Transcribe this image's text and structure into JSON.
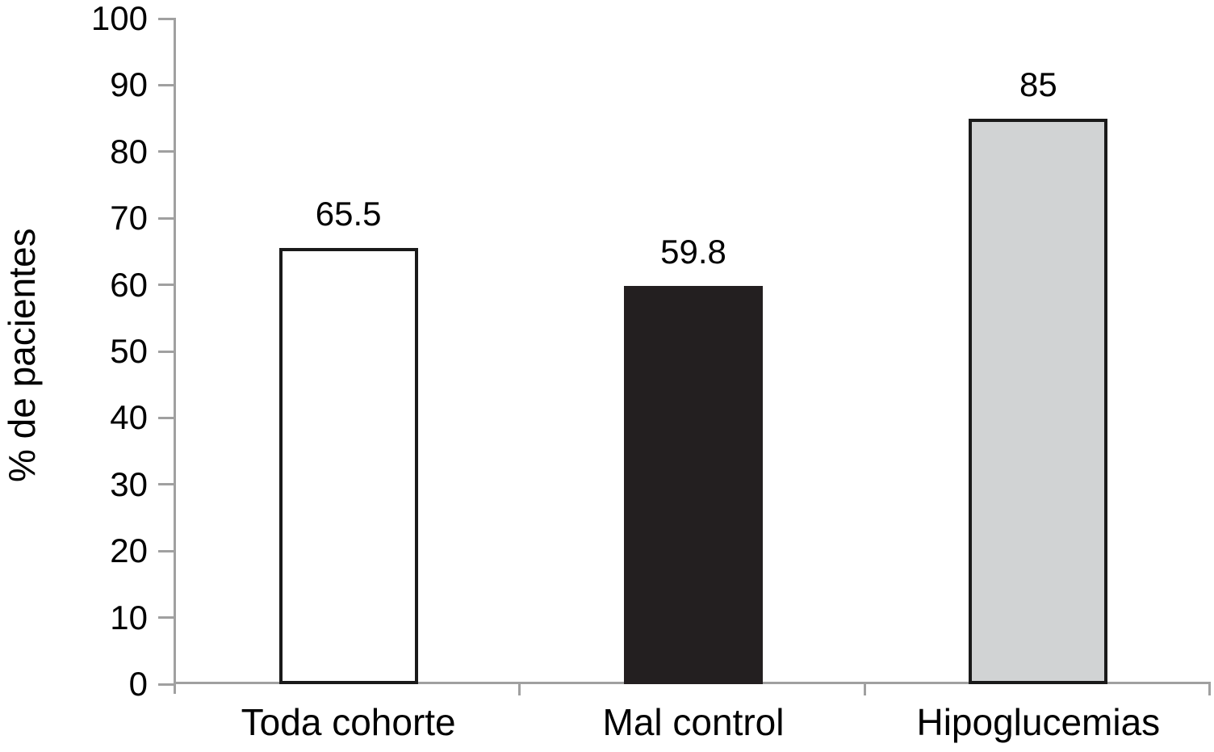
{
  "chart_data": {
    "type": "bar",
    "title": "",
    "ylabel": "% de pacientes",
    "xlabel": "",
    "categories": [
      "Toda cohorte",
      "Mal control",
      "Hipoglucemias"
    ],
    "values": [
      65.5,
      59.8,
      85
    ],
    "value_labels": [
      "65.5",
      "59.8",
      "85"
    ],
    "ylim": [
      0,
      100
    ],
    "yticks": [
      0,
      10,
      20,
      30,
      40,
      50,
      60,
      70,
      80,
      90,
      100
    ],
    "grid": false,
    "legend": false,
    "bar_styles": [
      {
        "fill": "#ffffff",
        "border": "#1a1a1a"
      },
      {
        "fill": "#231f20",
        "border": "#231f20"
      },
      {
        "fill": "#d1d3d4",
        "border": "#1a1a1a"
      }
    ],
    "axis_color": "#a0a0a0",
    "text_color": "#000000",
    "background": "#ffffff"
  }
}
